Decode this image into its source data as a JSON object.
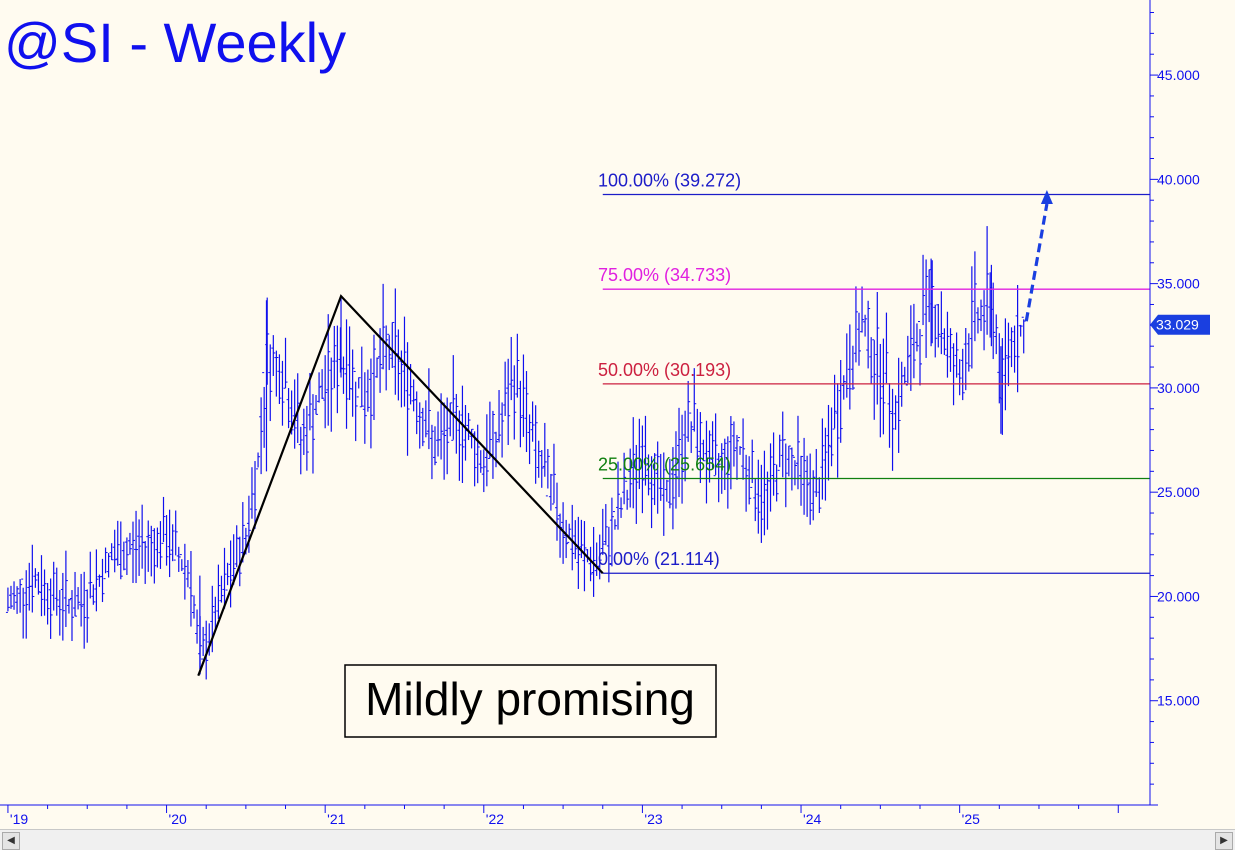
{
  "chart_data": {
    "type": "bar",
    "subtype": "ohlc-weekly",
    "title": "@SI - Weekly",
    "annotation": "Mildly promising",
    "ylim": [
      10,
      48.6
    ],
    "y_ticks": [
      "15.000",
      "20.000",
      "25.000",
      "30.000",
      "35.000",
      "40.000",
      "45.000"
    ],
    "y_tick_values": [
      15,
      20,
      25,
      30,
      35,
      40,
      45
    ],
    "x_ticks": [
      "'19",
      "'20",
      "'21",
      "'22",
      "'23",
      "'24",
      "'25"
    ],
    "x_tick_values": [
      2019,
      2020,
      2021,
      2022,
      2023,
      2024,
      2025
    ],
    "xlim": [
      2018.95,
      2026.2
    ],
    "last_price": "33.029",
    "last_price_value": 33.029,
    "fib_levels": [
      {
        "label": "100.00% (39.272)",
        "value": 39.272,
        "color": "#1c1cc8"
      },
      {
        "label": "75.00% (34.733)",
        "value": 34.733,
        "color": "#e020e0"
      },
      {
        "label": "50.00% (30.193)",
        "value": 30.193,
        "color": "#cc2040"
      },
      {
        "label": "25.00% (25.654)",
        "value": 25.654,
        "color": "#108010"
      },
      {
        "label": "0.00% (21.114)",
        "value": 21.114,
        "color": "#1c1cc8"
      }
    ],
    "fib_start_x": 2022.75,
    "abc_pattern": [
      {
        "x": 2020.2,
        "y": 16.2
      },
      {
        "x": 2021.1,
        "y": 34.4
      },
      {
        "x": 2022.75,
        "y": 21.114
      }
    ],
    "projection": {
      "from": {
        "x": 2025.42,
        "y": 33.2
      },
      "to": {
        "x": 2025.55,
        "y": 39.3
      }
    },
    "series_key_points": [
      {
        "x": 2019.0,
        "y": 19.5
      },
      {
        "x": 2019.15,
        "y": 20.8
      },
      {
        "x": 2019.3,
        "y": 20.0
      },
      {
        "x": 2019.45,
        "y": 19.5
      },
      {
        "x": 2019.65,
        "y": 21.8
      },
      {
        "x": 2019.85,
        "y": 22.5
      },
      {
        "x": 2020.0,
        "y": 22.7
      },
      {
        "x": 2020.15,
        "y": 21.2
      },
      {
        "x": 2020.21,
        "y": 16.8
      },
      {
        "x": 2020.35,
        "y": 20.0
      },
      {
        "x": 2020.5,
        "y": 23.0
      },
      {
        "x": 2020.58,
        "y": 26.5
      },
      {
        "x": 2020.63,
        "y": 31.5
      },
      {
        "x": 2020.72,
        "y": 31.0
      },
      {
        "x": 2020.85,
        "y": 27.5
      },
      {
        "x": 2021.0,
        "y": 30.0
      },
      {
        "x": 2021.1,
        "y": 31.5
      },
      {
        "x": 2021.25,
        "y": 29.5
      },
      {
        "x": 2021.4,
        "y": 32.0
      },
      {
        "x": 2021.55,
        "y": 30.0
      },
      {
        "x": 2021.7,
        "y": 27.0
      },
      {
        "x": 2021.85,
        "y": 28.5
      },
      {
        "x": 2022.0,
        "y": 26.5
      },
      {
        "x": 2022.1,
        "y": 28.0
      },
      {
        "x": 2022.2,
        "y": 30.5
      },
      {
        "x": 2022.35,
        "y": 26.5
      },
      {
        "x": 2022.5,
        "y": 23.5
      },
      {
        "x": 2022.6,
        "y": 22.0
      },
      {
        "x": 2022.72,
        "y": 21.6
      },
      {
        "x": 2022.85,
        "y": 24.0
      },
      {
        "x": 2023.0,
        "y": 27.0
      },
      {
        "x": 2023.15,
        "y": 24.5
      },
      {
        "x": 2023.3,
        "y": 28.5
      },
      {
        "x": 2023.45,
        "y": 26.0
      },
      {
        "x": 2023.6,
        "y": 27.5
      },
      {
        "x": 2023.75,
        "y": 24.5
      },
      {
        "x": 2023.9,
        "y": 27.0
      },
      {
        "x": 2024.1,
        "y": 24.8
      },
      {
        "x": 2024.25,
        "y": 29.5
      },
      {
        "x": 2024.38,
        "y": 33.0
      },
      {
        "x": 2024.5,
        "y": 31.0
      },
      {
        "x": 2024.6,
        "y": 29.0
      },
      {
        "x": 2024.7,
        "y": 31.5
      },
      {
        "x": 2024.82,
        "y": 34.5
      },
      {
        "x": 2024.92,
        "y": 32.0
      },
      {
        "x": 2025.0,
        "y": 30.5
      },
      {
        "x": 2025.1,
        "y": 33.5
      },
      {
        "x": 2025.22,
        "y": 34.0
      },
      {
        "x": 2025.26,
        "y": 29.5
      },
      {
        "x": 2025.32,
        "y": 32.5
      },
      {
        "x": 2025.42,
        "y": 33.0
      }
    ]
  },
  "colors": {
    "background": "#fffbf0",
    "bars": "#1010ee",
    "title": "#1010ee",
    "axis": "#1010ee",
    "pattern": "#000000"
  }
}
